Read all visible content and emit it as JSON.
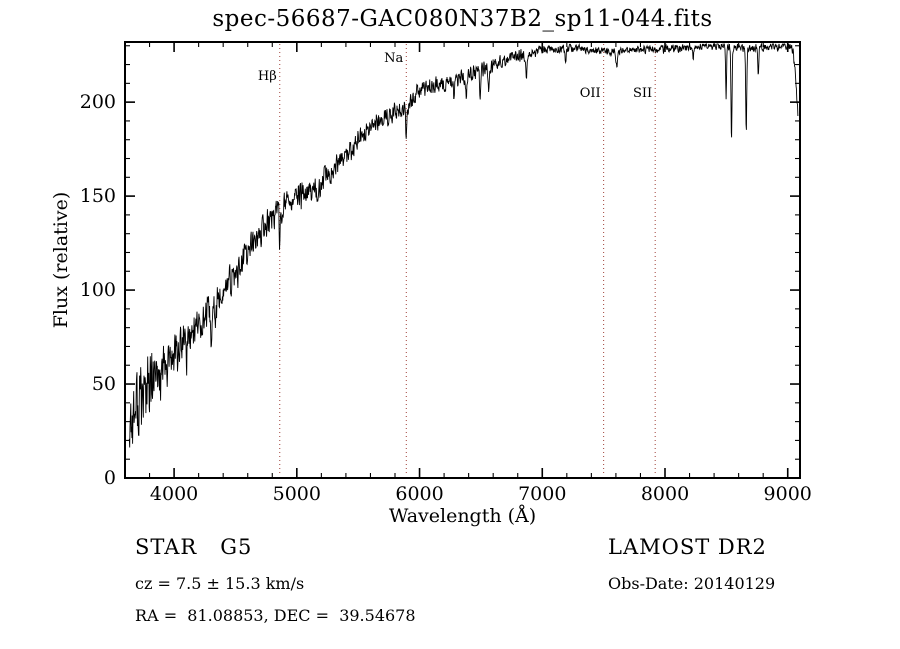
{
  "chart_data": {
    "type": "line",
    "title": "spec-56687-GAC080N37B2_sp11-044.fits",
    "xlabel": "Wavelength (Å)",
    "ylabel": "Flux (relative)",
    "xlim": [
      3600,
      9100
    ],
    "ylim": [
      0,
      232
    ],
    "x_ticks": [
      4000,
      5000,
      6000,
      7000,
      8000,
      9000
    ],
    "y_ticks": [
      0,
      50,
      100,
      150,
      200
    ],
    "x_minor_step": 200,
    "y_minor_step": 10,
    "grid": false,
    "legend": false,
    "line_color": "#000000",
    "marker_color": "#a04038",
    "marker_lines": [
      {
        "label": "Hβ",
        "wavelength": 4861,
        "label_y": 80
      },
      {
        "label": "Na",
        "wavelength": 5892,
        "label_y": 62
      },
      {
        "label": "OII",
        "wavelength": 7500,
        "label_y": 97
      },
      {
        "label": "SII",
        "wavelength": 7920,
        "label_y": 97
      }
    ],
    "envelope": [
      [
        3635,
        30
      ],
      [
        3700,
        38
      ],
      [
        3750,
        44
      ],
      [
        3800,
        48
      ],
      [
        3850,
        52
      ],
      [
        3900,
        56
      ],
      [
        3950,
        60
      ],
      [
        4000,
        65
      ],
      [
        4100,
        74
      ],
      [
        4200,
        82
      ],
      [
        4300,
        88
      ],
      [
        4400,
        99
      ],
      [
        4500,
        108
      ],
      [
        4600,
        120
      ],
      [
        4700,
        130
      ],
      [
        4800,
        139
      ],
      [
        4900,
        145
      ],
      [
        5000,
        149
      ],
      [
        5100,
        152
      ],
      [
        5200,
        157
      ],
      [
        5300,
        164
      ],
      [
        5400,
        171
      ],
      [
        5500,
        179
      ],
      [
        5600,
        186
      ],
      [
        5700,
        191
      ],
      [
        5800,
        195
      ],
      [
        5900,
        198
      ],
      [
        6000,
        205
      ],
      [
        6100,
        208
      ],
      [
        6200,
        210
      ],
      [
        6300,
        211
      ],
      [
        6400,
        214
      ],
      [
        6500,
        217
      ],
      [
        6600,
        220
      ],
      [
        6700,
        222
      ],
      [
        6800,
        224
      ],
      [
        6900,
        226
      ],
      [
        7000,
        228
      ],
      [
        7200,
        229
      ],
      [
        7400,
        228
      ],
      [
        7600,
        227
      ],
      [
        7800,
        228
      ],
      [
        8000,
        228
      ],
      [
        8200,
        229
      ],
      [
        8400,
        230
      ],
      [
        8600,
        229
      ],
      [
        8800,
        229
      ],
      [
        9000,
        230
      ],
      [
        9040,
        229
      ],
      [
        9065,
        213
      ],
      [
        9085,
        190
      ]
    ],
    "noise_amplitude": [
      [
        3635,
        30
      ],
      [
        3700,
        28
      ],
      [
        3800,
        22
      ],
      [
        3900,
        16
      ],
      [
        4000,
        13
      ],
      [
        4200,
        11
      ],
      [
        4500,
        10
      ],
      [
        4800,
        9
      ],
      [
        5000,
        8
      ],
      [
        5500,
        7
      ],
      [
        6000,
        6
      ],
      [
        6500,
        5
      ],
      [
        6800,
        4
      ],
      [
        7000,
        3
      ],
      [
        7500,
        2.5
      ],
      [
        8000,
        2.5
      ],
      [
        8500,
        2.5
      ],
      [
        9000,
        3
      ],
      [
        9085,
        5
      ]
    ],
    "absorption_features": [
      [
        4101,
        10,
        6
      ],
      [
        4305,
        14,
        10
      ],
      [
        4340,
        10,
        6
      ],
      [
        4861,
        14,
        7
      ],
      [
        5170,
        12,
        10
      ],
      [
        5892,
        15,
        9
      ],
      [
        6280,
        12,
        5
      ],
      [
        6380,
        14,
        4
      ],
      [
        6495,
        16,
        6
      ],
      [
        6563,
        14,
        6
      ],
      [
        6870,
        10,
        8
      ],
      [
        7190,
        6,
        8
      ],
      [
        7605,
        8,
        10
      ],
      [
        8230,
        6,
        6
      ],
      [
        8498,
        28,
        5
      ],
      [
        8542,
        50,
        6
      ],
      [
        8662,
        45,
        6
      ],
      [
        8760,
        15,
        5
      ]
    ],
    "noise_seed": 77,
    "sample_step": 3,
    "data_range": [
      3635,
      9085
    ]
  },
  "footer": {
    "classification": "STAR   G5",
    "survey": "LAMOST DR2",
    "cz": "cz = 7.5 ± 15.3 km/s",
    "obs_date": "Obs-Date: 20140129",
    "coordinates": "RA =  81.08853, DEC =  39.54678"
  }
}
